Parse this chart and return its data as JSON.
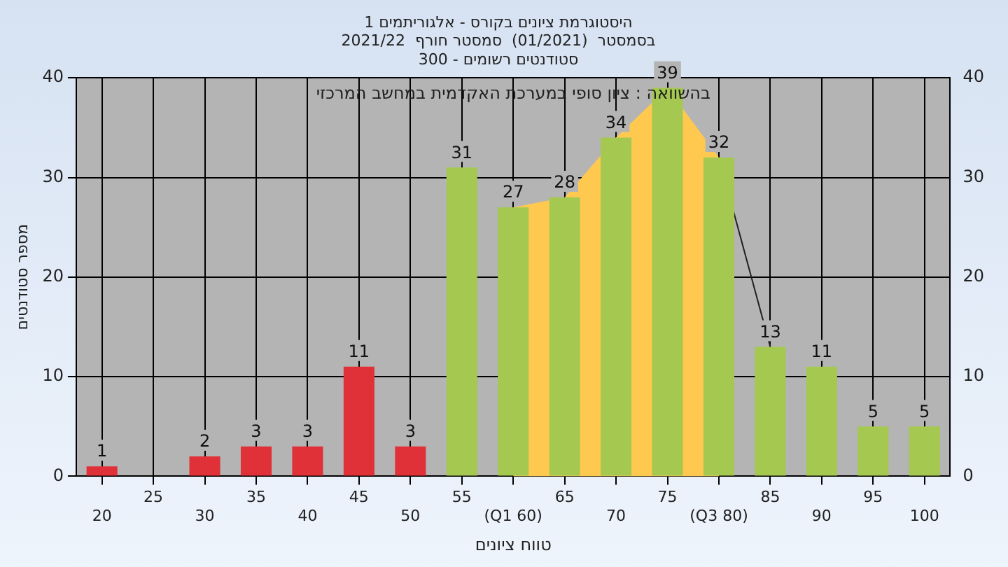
{
  "chart_data": {
    "type": "bar",
    "title": [
      "היסטוגרמת ציונים בקורס - אלגוריתמים 1",
      "בסמסטר  (01/2021)  סמסטר חורף  2021/22",
      "סטודנטים רשומים - 300"
    ],
    "xlabel": "טווח ציונים",
    "ylabel": "מספר סטודנטים",
    "categories": [
      "20",
      "25",
      "30",
      "35",
      "40",
      "45",
      "50",
      "55",
      "(Q1 60)",
      "65",
      "70",
      "75",
      "(Q3 80)",
      "85",
      "90",
      "95",
      "100"
    ],
    "series": [
      {
        "type": "area",
        "color": "#ffc94f",
        "values": [
          null,
          null,
          null,
          null,
          null,
          null,
          null,
          null,
          27,
          28,
          34,
          39,
          32,
          null,
          null,
          null,
          null
        ]
      },
      {
        "type": "line",
        "color": "#202020",
        "values": [
          null,
          null,
          null,
          null,
          null,
          null,
          null,
          null,
          null,
          null,
          null,
          null,
          32,
          13,
          null,
          null,
          null
        ]
      },
      {
        "colors": [
          "#e03038",
          "#e03038",
          "#e03038",
          "#e03038",
          "#e03038",
          "#e03038",
          "#e03038",
          "#a4c850",
          "#a4c850",
          "#a4c850",
          "#a4c850",
          "#a4c850",
          "#a4c850",
          "#a4c850",
          "#a4c850",
          "#a4c850",
          "#a4c850"
        ],
        "values": [
          1,
          0,
          2,
          3,
          3,
          11,
          3,
          31,
          27,
          28,
          34,
          39,
          32,
          13,
          11,
          5,
          5
        ],
        "value_labels": [
          "1",
          null,
          "2",
          "3",
          "3",
          "11",
          "3",
          "31",
          "27",
          "28",
          "34",
          "39",
          "32",
          "13",
          "11",
          "5",
          "5"
        ]
      }
    ],
    "annotations": [
      "בהשוואה : ציון סופי במערכת האקדמית במחשב המרכזי"
    ],
    "ylim": [
      0,
      40
    ],
    "yticks": [
      0,
      10,
      20,
      30,
      40
    ],
    "y2lim": [
      0,
      40
    ],
    "y2ticks": [
      0,
      10,
      20,
      30,
      40
    ],
    "grid": true,
    "legend": false
  }
}
